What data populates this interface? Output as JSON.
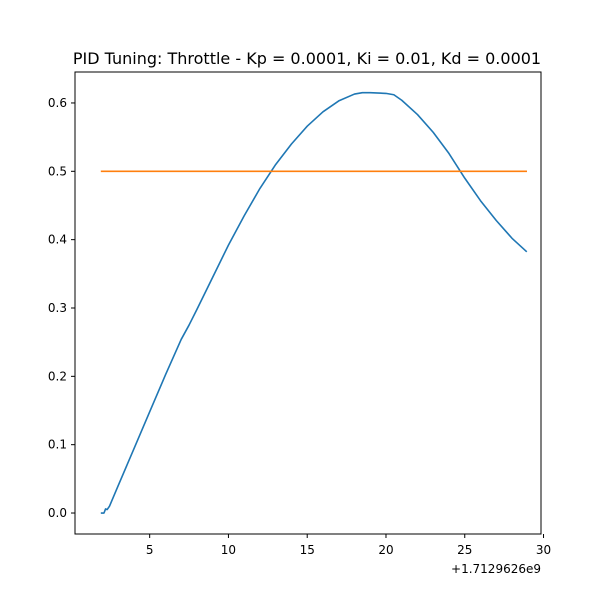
{
  "chart_data": {
    "type": "line",
    "title": "PID Tuning: Throttle - Kp = 0.0001, Ki = 0.01, Kd = 0.0001",
    "xlabel": "",
    "ylabel": "",
    "x_offset_label": "+1.7129626e9",
    "xlim": [
      0.26,
      29.84
    ],
    "ylim": [
      -0.0307,
      0.6453
    ],
    "x_ticks": [
      5,
      10,
      15,
      20,
      25,
      30
    ],
    "y_ticks": [
      0.0,
      0.1,
      0.2,
      0.3,
      0.4,
      0.5,
      0.6
    ],
    "x_tick_labels": [
      "5",
      "10",
      "15",
      "20",
      "25",
      "30"
    ],
    "y_tick_labels": [
      "0.0",
      "0.1",
      "0.2",
      "0.3",
      "0.4",
      "0.5",
      "0.6"
    ],
    "grid": false,
    "legend": null,
    "series": [
      {
        "color": "#1f77b4",
        "x": [
          1.95,
          2.1,
          2.2,
          2.3,
          2.45,
          3,
          4,
          5,
          6,
          7,
          7.5,
          8,
          9,
          10,
          11,
          12,
          13,
          14,
          15,
          16,
          17,
          18,
          18.5,
          19,
          20,
          20.5,
          21,
          22,
          23,
          24,
          25,
          26,
          27,
          28,
          28.9
        ],
        "y": [
          0.0,
          0.0,
          0.006,
          0.005,
          0.01,
          0.04,
          0.094,
          0.148,
          0.202,
          0.254,
          0.275,
          0.298,
          0.345,
          0.392,
          0.435,
          0.475,
          0.51,
          0.54,
          0.566,
          0.587,
          0.603,
          0.613,
          0.615,
          0.615,
          0.614,
          0.612,
          0.604,
          0.583,
          0.557,
          0.526,
          0.49,
          0.457,
          0.428,
          0.402,
          0.383
        ]
      },
      {
        "color": "#ff7f0e",
        "x": [
          1.95,
          28.9
        ],
        "y": [
          0.5,
          0.5
        ]
      }
    ]
  }
}
